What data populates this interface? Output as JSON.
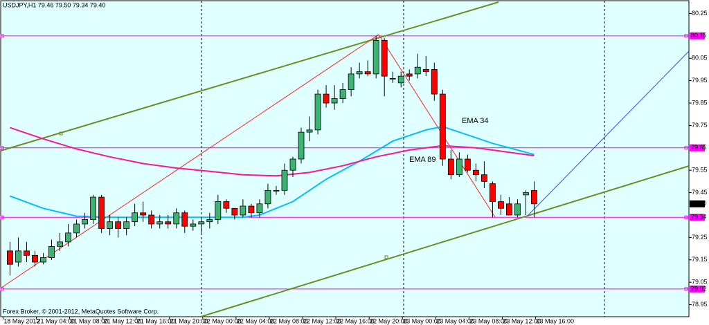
{
  "chart_data": {
    "type": "candlestick",
    "title": "USDJPY,H1  79.46 79.50 79.34 79.40",
    "footer": "Forex Broker, © 2001-2012, MetaQuotes Software Corp.",
    "up_color": "#3cb371",
    "down_color": "#ff0000",
    "candles": {
      "open": [
        79.19,
        79.14,
        79.19,
        79.17,
        79.14,
        79.16,
        79.21,
        79.23,
        79.27,
        79.31,
        79.33,
        79.43,
        79.29,
        79.32,
        79.29,
        79.32,
        79.36,
        79.35,
        79.31,
        79.32,
        79.31,
        79.36,
        79.3,
        79.31,
        79.32,
        79.33,
        79.41,
        79.38,
        79.35,
        79.39,
        79.36,
        79.4,
        79.46,
        79.46,
        79.55,
        79.6,
        79.72,
        79.73,
        79.89,
        79.85,
        79.87,
        79.91,
        79.98,
        79.99,
        79.98,
        80.13,
        79.96,
        79.94,
        79.98,
        79.98,
        80.0,
        80.0,
        79.89,
        79.6,
        79.53,
        79.6,
        79.55,
        79.53,
        79.49,
        79.41,
        79.4,
        79.35,
        79.44,
        79.46
      ],
      "high": [
        79.23,
        79.25,
        79.23,
        79.19,
        79.18,
        79.24,
        79.27,
        79.31,
        79.33,
        79.36,
        79.44,
        79.44,
        79.35,
        79.34,
        79.34,
        79.4,
        79.41,
        79.37,
        79.35,
        79.35,
        79.38,
        79.37,
        79.33,
        79.34,
        79.36,
        79.44,
        79.42,
        79.38,
        79.42,
        79.4,
        79.42,
        79.49,
        79.48,
        79.58,
        79.61,
        79.74,
        79.79,
        79.91,
        79.93,
        79.93,
        79.94,
        80.01,
        80.03,
        80.04,
        80.15,
        80.14,
        79.99,
        79.99,
        80.0,
        80.07,
        80.06,
        80.03,
        79.91,
        79.64,
        79.63,
        79.62,
        79.58,
        79.59,
        79.5,
        79.44,
        79.43,
        79.42,
        79.46,
        79.5
      ],
      "low": [
        79.08,
        79.12,
        79.14,
        79.12,
        79.13,
        79.15,
        79.19,
        79.21,
        79.25,
        79.29,
        79.31,
        79.27,
        79.26,
        79.25,
        79.26,
        79.3,
        79.32,
        79.29,
        79.29,
        79.29,
        79.29,
        79.27,
        79.28,
        79.27,
        79.29,
        79.31,
        79.36,
        79.33,
        79.34,
        79.34,
        79.34,
        79.38,
        79.44,
        79.44,
        79.52,
        79.58,
        79.68,
        79.71,
        79.83,
        79.82,
        79.85,
        79.88,
        79.96,
        79.97,
        79.96,
        79.88,
        79.94,
        79.92,
        79.95,
        79.96,
        79.97,
        79.86,
        79.57,
        79.51,
        79.52,
        79.54,
        79.5,
        79.47,
        79.34,
        79.35,
        79.35,
        79.34,
        79.35,
        79.34
      ],
      "close": [
        79.13,
        79.19,
        79.17,
        79.14,
        79.16,
        79.21,
        79.23,
        79.27,
        79.31,
        79.33,
        79.43,
        79.29,
        79.32,
        79.29,
        79.32,
        79.36,
        79.35,
        79.31,
        79.32,
        79.31,
        79.36,
        79.3,
        79.31,
        79.32,
        79.33,
        79.41,
        79.38,
        79.35,
        79.39,
        79.36,
        79.4,
        79.46,
        79.46,
        79.55,
        79.6,
        79.72,
        79.73,
        79.89,
        79.85,
        79.87,
        79.91,
        79.98,
        79.99,
        79.98,
        80.13,
        79.97,
        79.96,
        79.97,
        79.97,
        80.01,
        79.99,
        79.89,
        79.6,
        79.53,
        79.6,
        79.55,
        79.53,
        79.5,
        79.41,
        79.38,
        79.35,
        79.4,
        79.45,
        79.4
      ]
    },
    "lines": [
      {
        "name": "EMA 34",
        "color": "#00bfff",
        "x": [
          0,
          4,
          8,
          12,
          16,
          20,
          24,
          28,
          30,
          34,
          38,
          42,
          46,
          50,
          52,
          54,
          58,
          63
        ],
        "values": [
          79.435,
          79.38,
          79.345,
          79.34,
          79.34,
          79.34,
          79.34,
          79.34,
          79.35,
          79.41,
          79.51,
          79.59,
          79.68,
          79.73,
          79.745,
          79.72,
          79.67,
          79.62
        ]
      },
      {
        "name": "EMA 89",
        "color": "#ff1493",
        "x": [
          0,
          4,
          8,
          12,
          16,
          20,
          24,
          28,
          32,
          36,
          40,
          44,
          48,
          52,
          56,
          60,
          63
        ],
        "values": [
          79.74,
          79.69,
          79.645,
          79.61,
          79.58,
          79.56,
          79.545,
          79.53,
          79.525,
          79.54,
          79.57,
          79.61,
          79.64,
          79.66,
          79.65,
          79.63,
          79.615
        ]
      }
    ],
    "levels": [
      80.15,
      79.65,
      79.34,
      79.02
    ],
    "level_color": "#ff00ff",
    "current_price": {
      "value": 79.4,
      "label": "79.40"
    },
    "ylim": [
      78.89,
      80.31
    ],
    "yticks": [
      80.25,
      80.05,
      79.95,
      79.85,
      79.75,
      79.55,
      79.45,
      79.25,
      79.15,
      79.05,
      78.95
    ],
    "xlim": [
      -1.2,
      81.6
    ],
    "xticks": [
      {
        "value": 0,
        "label": "18 May 2012"
      },
      {
        "value": 4,
        "label": "21 May 04:00"
      },
      {
        "value": 8,
        "label": "21 May 08:00"
      },
      {
        "value": 12,
        "label": "21 May 12:00"
      },
      {
        "value": 16,
        "label": "21 May 16:00"
      },
      {
        "value": 20,
        "label": "21 May 20:00"
      },
      {
        "value": 24,
        "label": "22 May 00:00"
      },
      {
        "value": 28,
        "label": "22 May 04:00"
      },
      {
        "value": 32,
        "label": "22 May 08:00"
      },
      {
        "value": 36,
        "label": "22 May 12:00"
      },
      {
        "value": 40,
        "label": "22 May 16:00"
      },
      {
        "value": 44,
        "label": "22 May 20:00"
      },
      {
        "value": 48,
        "label": "23 May 00:00"
      },
      {
        "value": 52,
        "label": "23 May 04:00"
      },
      {
        "value": 56,
        "label": "23 May 08:00"
      },
      {
        "value": 60,
        "label": "23 May 12:00"
      },
      {
        "value": 64,
        "label": "23 May 16:00"
      }
    ]
  }
}
